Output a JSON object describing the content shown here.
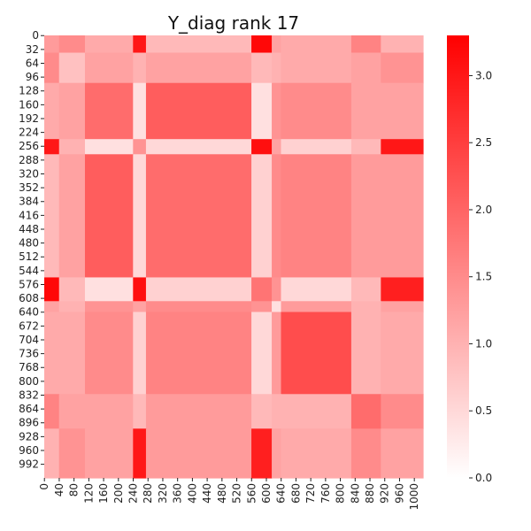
{
  "chart_data": {
    "type": "heatmap",
    "title": "Y_diag rank 17",
    "xlabel": "",
    "ylabel": "",
    "matrix_size": 1024,
    "x_tick_labels": [
      "0",
      "40",
      "80",
      "120",
      "160",
      "200",
      "240",
      "280",
      "320",
      "360",
      "400",
      "440",
      "480",
      "520",
      "560",
      "600",
      "640",
      "680",
      "720",
      "760",
      "800",
      "840",
      "880",
      "920",
      "960",
      "1000"
    ],
    "y_tick_labels": [
      "0",
      "32",
      "64",
      "96",
      "128",
      "160",
      "192",
      "224",
      "256",
      "288",
      "320",
      "352",
      "384",
      "416",
      "448",
      "480",
      "512",
      "544",
      "576",
      "608",
      "640",
      "672",
      "704",
      "736",
      "768",
      "800",
      "832",
      "864",
      "896",
      "928",
      "960",
      "992"
    ],
    "colorbar": {
      "min": 0.0,
      "max": 3.3,
      "tick_labels": [
        "0.0",
        "0.5",
        "1.0",
        "1.5",
        "2.0",
        "2.5",
        "3.0"
      ],
      "color_low": "#ffffff",
      "color_high": "#ff0000"
    },
    "bands": [
      {
        "start": 0,
        "end": 40
      },
      {
        "start": 40,
        "end": 110
      },
      {
        "start": 110,
        "end": 240
      },
      {
        "start": 240,
        "end": 275
      },
      {
        "start": 275,
        "end": 560
      },
      {
        "start": 560,
        "end": 615
      },
      {
        "start": 615,
        "end": 640
      },
      {
        "start": 640,
        "end": 830
      },
      {
        "start": 830,
        "end": 910
      },
      {
        "start": 910,
        "end": 1024
      }
    ],
    "block_values": [
      [
        1.3,
        1.5,
        1.1,
        3.0,
        0.9,
        3.2,
        1.2,
        1.1,
        1.6,
        1.0
      ],
      [
        1.5,
        0.8,
        1.2,
        1.0,
        1.2,
        0.9,
        1.0,
        1.1,
        1.2,
        1.4
      ],
      [
        1.1,
        1.2,
        1.9,
        0.4,
        2.1,
        0.4,
        1.4,
        1.5,
        1.2,
        1.2
      ],
      [
        3.0,
        1.0,
        0.4,
        1.4,
        0.5,
        3.1,
        1.2,
        0.6,
        0.9,
        3.0
      ],
      [
        0.9,
        1.2,
        2.1,
        0.5,
        1.9,
        0.6,
        1.5,
        1.6,
        1.3,
        1.3
      ],
      [
        3.2,
        0.9,
        0.4,
        3.1,
        0.6,
        1.8,
        1.4,
        0.5,
        0.9,
        2.9
      ],
      [
        1.2,
        1.0,
        1.4,
        1.2,
        1.5,
        1.4,
        0.4,
        1.3,
        1.0,
        1.2
      ],
      [
        1.1,
        1.1,
        1.5,
        0.6,
        1.6,
        0.5,
        1.3,
        2.3,
        1.0,
        1.1
      ],
      [
        1.6,
        1.2,
        1.2,
        0.9,
        1.3,
        0.9,
        1.0,
        1.0,
        1.9,
        1.5
      ],
      [
        1.0,
        1.4,
        1.2,
        3.0,
        1.3,
        2.9,
        1.2,
        1.1,
        1.5,
        1.2
      ]
    ]
  }
}
